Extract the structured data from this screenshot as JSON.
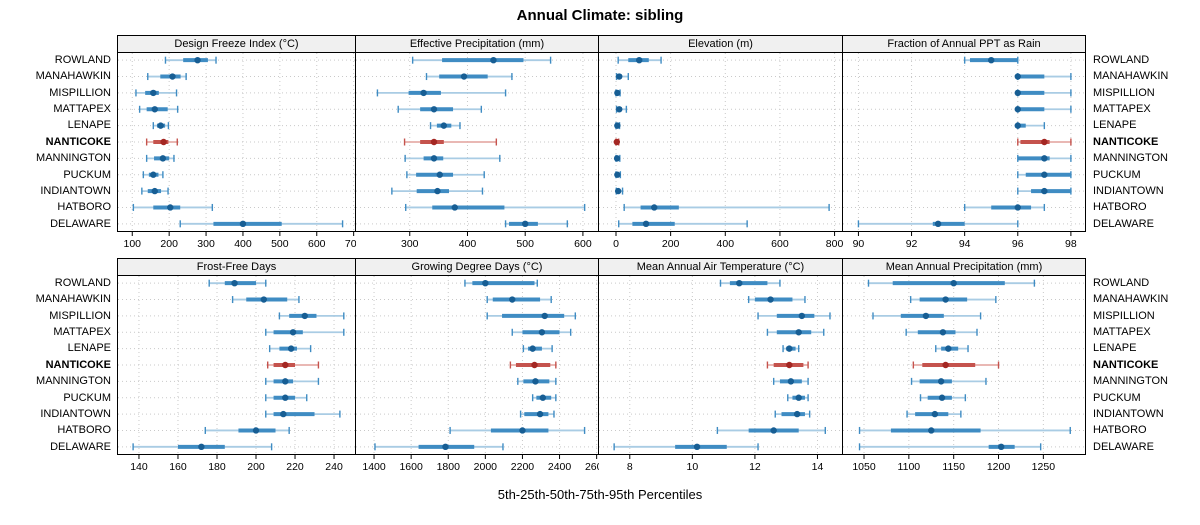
{
  "title": "Annual Climate: sibling",
  "caption": "5th-25th-50th-75th-95th Percentiles",
  "highlight_site": "NANTICOKE",
  "colors": {
    "normal": {
      "light": "#A9CCE4",
      "mid": "#3F8CC3",
      "dot": "#175E94"
    },
    "highlight": {
      "light": "#E6AEAA",
      "mid": "#C5534D",
      "dot": "#A42723"
    },
    "grid": "#C9C9C9",
    "strip_bg": "#F0F0F0",
    "panel_border": "#000000"
  },
  "chart_data": {
    "type": "dot-interval percentile plot (5th-25th-50th-75th-95th)",
    "panel_grid": [
      2,
      4
    ],
    "rows": [
      "ROWLAND",
      "MANAHAWKIN",
      "MISPILLION",
      "MATTAPEX",
      "LENAPE",
      "NANTICOKE",
      "MANNINGTON",
      "PUCKUM",
      "INDIANTOWN",
      "HATBORO",
      "DELAWARE"
    ],
    "panels": [
      {
        "title": "Design Freeze Index (°C)",
        "ticks": [
          100,
          200,
          300,
          400,
          500,
          600,
          700
        ],
        "xlim": [
          60,
          705
        ],
        "values": [
          [
            190,
            238,
            277,
            305,
            327
          ],
          [
            142,
            176,
            209,
            231,
            246
          ],
          [
            110,
            135,
            157,
            172,
            220
          ],
          [
            120,
            139,
            161,
            196,
            223
          ],
          [
            157,
            167,
            177,
            189,
            198
          ],
          [
            139,
            157,
            185,
            198,
            222
          ],
          [
            139,
            159,
            183,
            200,
            213
          ],
          [
            130,
            145,
            157,
            171,
            183
          ],
          [
            126,
            142,
            161,
            178,
            197
          ],
          [
            103,
            157,
            203,
            230,
            317
          ],
          [
            230,
            320,
            400,
            505,
            670
          ]
        ]
      },
      {
        "title": "Effective Precipitation (mm)",
        "ticks": [
          300,
          400,
          500,
          600
        ],
        "xlim": [
          206,
          627
        ],
        "values": [
          [
            305,
            356,
            445,
            497,
            544
          ],
          [
            329,
            351,
            394,
            435,
            477
          ],
          [
            244,
            298,
            324,
            354,
            466
          ],
          [
            280,
            318,
            342,
            375,
            424
          ],
          [
            336,
            347,
            359,
            372,
            387
          ],
          [
            291,
            318,
            342,
            359,
            450
          ],
          [
            292,
            324,
            342,
            358,
            456
          ],
          [
            295,
            311,
            352,
            375,
            429
          ],
          [
            269,
            312,
            348,
            368,
            426
          ],
          [
            293,
            339,
            378,
            464,
            603
          ],
          [
            466,
            472,
            500,
            522,
            573
          ]
        ]
      },
      {
        "title": "Elevation (m)",
        "ticks": [
          0,
          200,
          400,
          600,
          800
        ],
        "xlim": [
          -64,
          829
        ],
        "values": [
          [
            8,
            45,
            85,
            120,
            165
          ],
          [
            2,
            6,
            12,
            22,
            45
          ],
          [
            0,
            2,
            5,
            9,
            15
          ],
          [
            2,
            5,
            12,
            22,
            38
          ],
          [
            0,
            2,
            5,
            8,
            13
          ],
          [
            0,
            1,
            3,
            6,
            10
          ],
          [
            0,
            2,
            4,
            8,
            14
          ],
          [
            0,
            2,
            5,
            9,
            16
          ],
          [
            1,
            4,
            8,
            14,
            24
          ],
          [
            30,
            90,
            140,
            230,
            780
          ],
          [
            10,
            60,
            110,
            215,
            480
          ]
        ]
      },
      {
        "title": "Fraction of Annual PPT as Rain",
        "ticks": [
          90,
          92,
          94,
          96,
          98
        ],
        "xlim": [
          89.4,
          98.55
        ],
        "values": [
          [
            94,
            94.2,
            95,
            96,
            96
          ],
          [
            96,
            96,
            96,
            97,
            98
          ],
          [
            96,
            96,
            96,
            97,
            98
          ],
          [
            96,
            96,
            96,
            97,
            98
          ],
          [
            96,
            96,
            96,
            96.3,
            97
          ],
          [
            96,
            96.1,
            97,
            97.2,
            98
          ],
          [
            96,
            96,
            97,
            97.2,
            98
          ],
          [
            96,
            96.3,
            97,
            98,
            98
          ],
          [
            96,
            96.5,
            97,
            98,
            98
          ],
          [
            94,
            95,
            96,
            96.5,
            97
          ],
          [
            90,
            92.8,
            93,
            94,
            96
          ]
        ]
      },
      {
        "title": "Frost-Free Days",
        "ticks": [
          140,
          160,
          180,
          200,
          220,
          240
        ],
        "xlim": [
          129,
          251
        ],
        "values": [
          [
            176,
            184,
            189,
            200,
            205
          ],
          [
            188,
            195,
            204,
            216,
            222
          ],
          [
            212,
            217,
            225,
            231,
            245
          ],
          [
            205,
            209,
            219,
            224,
            245
          ],
          [
            207,
            212,
            218,
            221,
            228
          ],
          [
            206,
            209,
            215,
            220,
            232
          ],
          [
            205,
            209,
            215,
            219,
            232
          ],
          [
            205,
            209,
            215,
            220,
            226
          ],
          [
            205,
            209,
            214,
            230,
            243
          ],
          [
            174,
            191,
            200,
            210,
            217
          ],
          [
            137,
            160,
            172,
            184,
            208
          ]
        ]
      },
      {
        "title": "Growing Degree Days (°C)",
        "ticks": [
          1400,
          1600,
          1800,
          2000,
          2200,
          2400,
          2600
        ],
        "xlim": [
          1300,
          2610
        ],
        "values": [
          [
            1890,
            1930,
            2000,
            2265,
            2280
          ],
          [
            2010,
            2040,
            2145,
            2295,
            2355
          ],
          [
            2010,
            2090,
            2320,
            2425,
            2485
          ],
          [
            2145,
            2200,
            2305,
            2400,
            2460
          ],
          [
            2205,
            2230,
            2255,
            2305,
            2360
          ],
          [
            2135,
            2165,
            2265,
            2350,
            2380
          ],
          [
            2175,
            2205,
            2270,
            2345,
            2380
          ],
          [
            2255,
            2275,
            2310,
            2355,
            2380
          ],
          [
            2190,
            2210,
            2295,
            2340,
            2370
          ],
          [
            1810,
            2030,
            2200,
            2340,
            2535
          ],
          [
            1405,
            1640,
            1785,
            1940,
            2095
          ]
        ]
      },
      {
        "title": "Mean Annual Air Temperature (°C)",
        "ticks": [
          8,
          10,
          12,
          14
        ],
        "xlim": [
          7.0,
          14.8
        ],
        "values": [
          [
            10.9,
            11.2,
            11.5,
            12.4,
            12.8
          ],
          [
            11.8,
            12.0,
            12.5,
            13.2,
            13.6
          ],
          [
            12.1,
            12.7,
            13.5,
            13.9,
            14.4
          ],
          [
            12.4,
            12.7,
            13.4,
            13.8,
            14.2
          ],
          [
            12.9,
            13.0,
            13.1,
            13.3,
            13.4
          ],
          [
            12.4,
            12.6,
            13.1,
            13.55,
            13.7
          ],
          [
            12.6,
            12.8,
            13.15,
            13.5,
            13.7
          ],
          [
            13.05,
            13.2,
            13.4,
            13.6,
            13.7
          ],
          [
            12.65,
            12.85,
            13.35,
            13.6,
            13.75
          ],
          [
            10.8,
            11.8,
            12.6,
            13.4,
            14.25
          ],
          [
            7.5,
            9.45,
            10.15,
            11.1,
            12.1
          ]
        ]
      },
      {
        "title": "Mean Annual Precipitation (mm)",
        "ticks": [
          1050,
          1100,
          1150,
          1200,
          1250
        ],
        "xlim": [
          1026,
          1297
        ],
        "values": [
          [
            1055,
            1082,
            1150,
            1207,
            1240
          ],
          [
            1102,
            1112,
            1141,
            1165,
            1197
          ],
          [
            1060,
            1091,
            1119,
            1139,
            1180
          ],
          [
            1097,
            1110,
            1138,
            1152,
            1176
          ],
          [
            1130,
            1136,
            1144,
            1155,
            1166
          ],
          [
            1105,
            1115,
            1141,
            1174,
            1200
          ],
          [
            1103,
            1112,
            1136,
            1148,
            1186
          ],
          [
            1113,
            1121,
            1137,
            1148,
            1163
          ],
          [
            1098,
            1107,
            1129,
            1144,
            1158
          ],
          [
            1045,
            1080,
            1125,
            1180,
            1280
          ],
          [
            1045,
            1189,
            1203,
            1218,
            1247
          ]
        ]
      }
    ]
  }
}
